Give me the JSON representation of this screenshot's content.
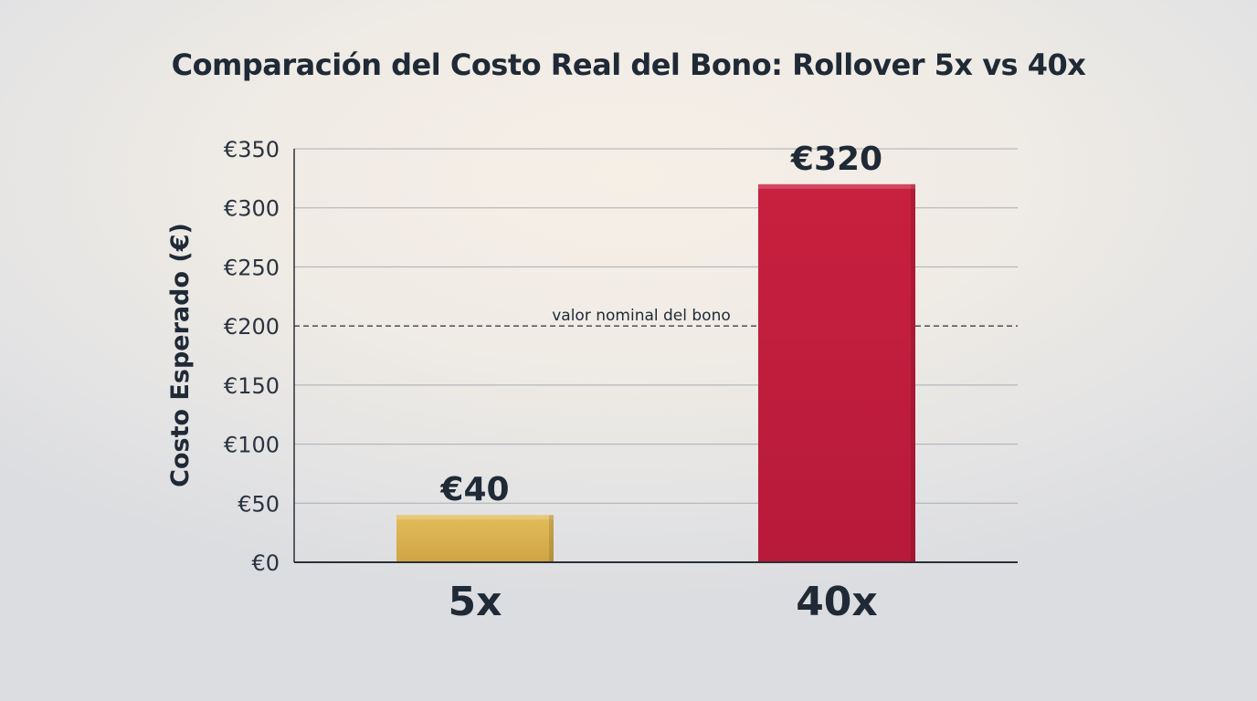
{
  "chart_data": {
    "type": "bar",
    "title": "Comparación del Costo Real del Bono: Rollover 5x vs 40x",
    "xlabel": "",
    "ylabel": "Costo Esperado (€)",
    "categories": [
      "5x",
      "40x"
    ],
    "values": [
      40,
      320
    ],
    "data_labels": [
      "€40",
      "€320"
    ],
    "bar_colors": [
      "#d9b250",
      "#c41e42"
    ],
    "ylim": [
      0,
      350
    ],
    "yticks": [
      0,
      50,
      100,
      150,
      200,
      250,
      300,
      350
    ],
    "ytick_labels": [
      "€0",
      "€50",
      "€100",
      "€150",
      "€200",
      "€250",
      "€300",
      "€350"
    ],
    "grid": true,
    "reference_line": {
      "value": 200,
      "label": "valor nominal del bono",
      "style": "dashed"
    }
  }
}
